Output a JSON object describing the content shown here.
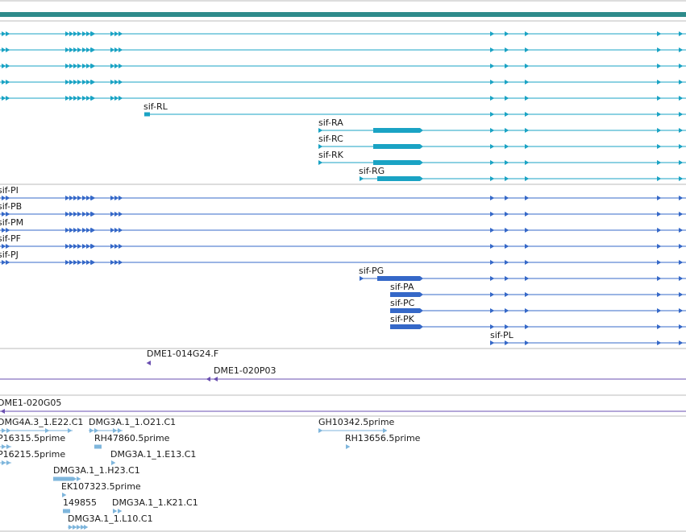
{
  "colors": {
    "gene": "#2e8b8b",
    "transcript": "#1aa3c4",
    "protein": "#3568c8",
    "bac": "#6a4fb0",
    "est": "#7fb6dc",
    "divider": "#bbbbbb",
    "label": "#1a1a1a"
  },
  "transcripts": {
    "unlabeled_count": 5,
    "labels": [
      "sif-RL",
      "sif-RA",
      "sif-RC",
      "sif-RK",
      "sif-RG"
    ]
  },
  "proteins": {
    "labels": [
      "sif-PI",
      "sif-PB",
      "sif-PM",
      "sif-PF",
      "sif-PJ",
      "sif-PG",
      "sif-PA",
      "sif-PC",
      "sif-PK",
      "sif-PL"
    ]
  },
  "bac_ends": {
    "labels": [
      "DME1-014G24.F",
      "DME1-020P03"
    ]
  },
  "bac_clone": {
    "label": "DME1-020G05"
  },
  "ests": {
    "labels": [
      "DMG4A.3_1.E22.C1",
      "DMG3A.1_1.O21.C1",
      "GH10342.5prime",
      "P16315.5prime",
      "RH47860.5prime",
      "RH13656.5prime",
      "P16215.5prime",
      "DMG3A.1_1.E13.C1",
      "DMG3A.1_1.H23.C1",
      "EK107323.5prime",
      "149855",
      "DMG3A.1_1.K21.C1",
      "DMG3A.1_1.L10.C1"
    ]
  }
}
